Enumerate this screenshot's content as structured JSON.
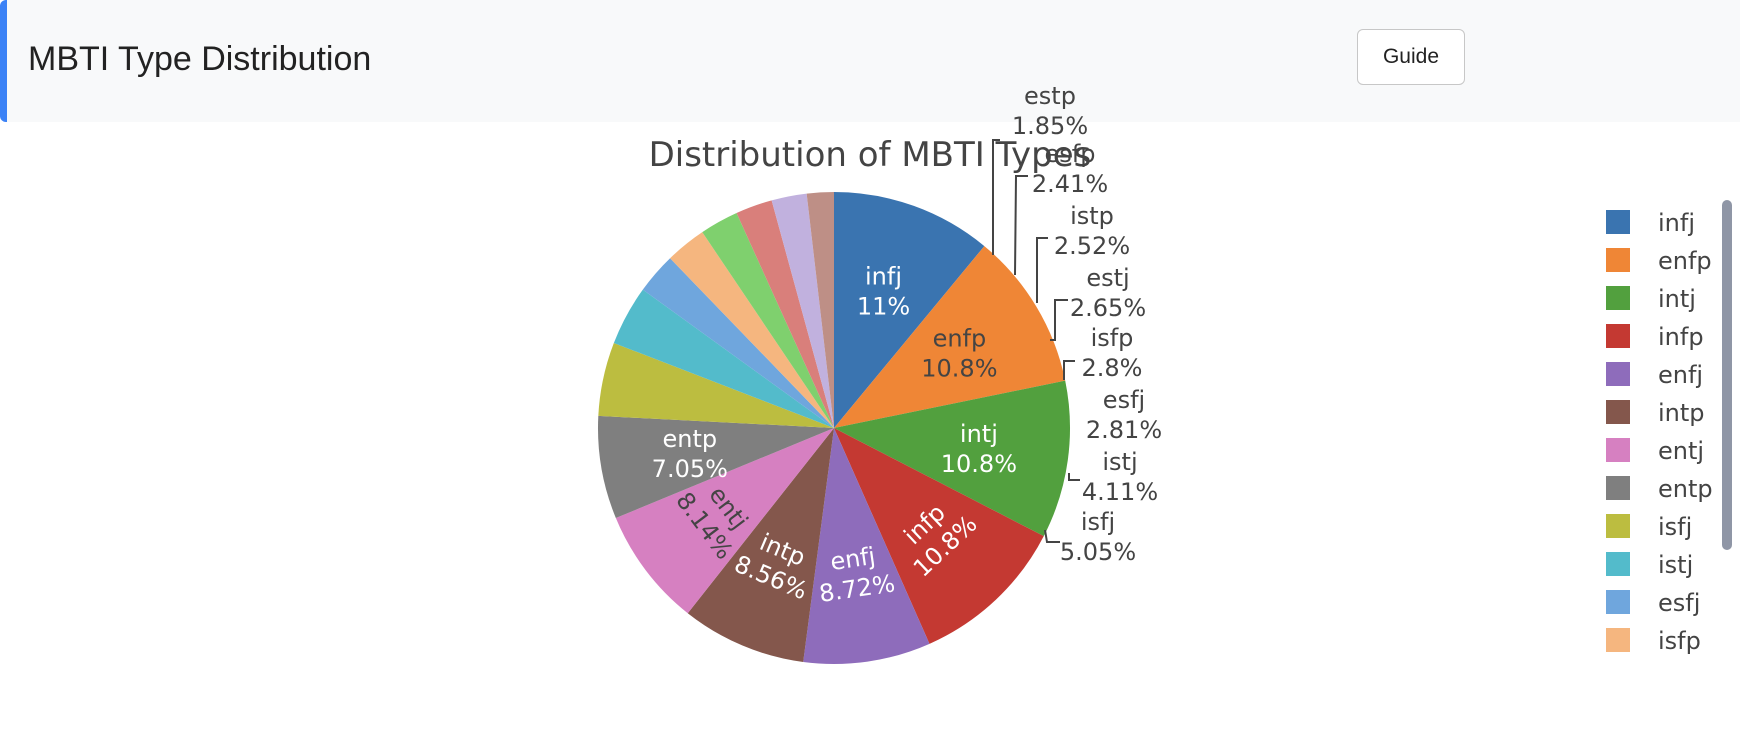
{
  "header": {
    "title": "MBTI Type Distribution",
    "guide_label": "Guide"
  },
  "chart_data": {
    "type": "pie",
    "title": "Distribution of MBTI Types",
    "legend_position": "right",
    "slices": [
      {
        "label": "infj",
        "value": 11.0,
        "text": "11%",
        "color": "#3a74b0"
      },
      {
        "label": "enfp",
        "value": 10.8,
        "text": "10.8%",
        "color": "#ef8636"
      },
      {
        "label": "intj",
        "value": 10.8,
        "text": "10.8%",
        "color": "#52a03e"
      },
      {
        "label": "infp",
        "value": 10.8,
        "text": "10.8%",
        "color": "#c43932"
      },
      {
        "label": "enfj",
        "value": 8.72,
        "text": "8.72%",
        "color": "#8e6cbb"
      },
      {
        "label": "intp",
        "value": 8.56,
        "text": "8.56%",
        "color": "#84574c"
      },
      {
        "label": "entj",
        "value": 8.14,
        "text": "8.14%",
        "color": "#d680c1"
      },
      {
        "label": "entp",
        "value": 7.05,
        "text": "7.05%",
        "color": "#7f7f7f"
      },
      {
        "label": "isfj",
        "value": 5.05,
        "text": "5.05%",
        "color": "#bcbd40"
      },
      {
        "label": "istj",
        "value": 4.11,
        "text": "4.11%",
        "color": "#53bbcb"
      },
      {
        "label": "esfj",
        "value": 2.81,
        "text": "2.81%",
        "color": "#6fa6dd"
      },
      {
        "label": "isfp",
        "value": 2.8,
        "text": "2.8%",
        "color": "#f5b67f"
      },
      {
        "label": "estj",
        "value": 2.65,
        "text": "2.65%",
        "color": "#7fd06e"
      },
      {
        "label": "istp",
        "value": 2.52,
        "text": "2.52%",
        "color": "#d97f7b"
      },
      {
        "label": "esfp",
        "value": 2.41,
        "text": "2.41%",
        "color": "#c1b1de"
      },
      {
        "label": "estp",
        "value": 1.85,
        "text": "1.85%",
        "color": "#be8f86"
      }
    ],
    "legend_visible": [
      "infj",
      "enfp",
      "intj",
      "infp",
      "enfj",
      "intp",
      "entj",
      "entp",
      "isfj",
      "istj",
      "esfj",
      "isfp"
    ]
  }
}
